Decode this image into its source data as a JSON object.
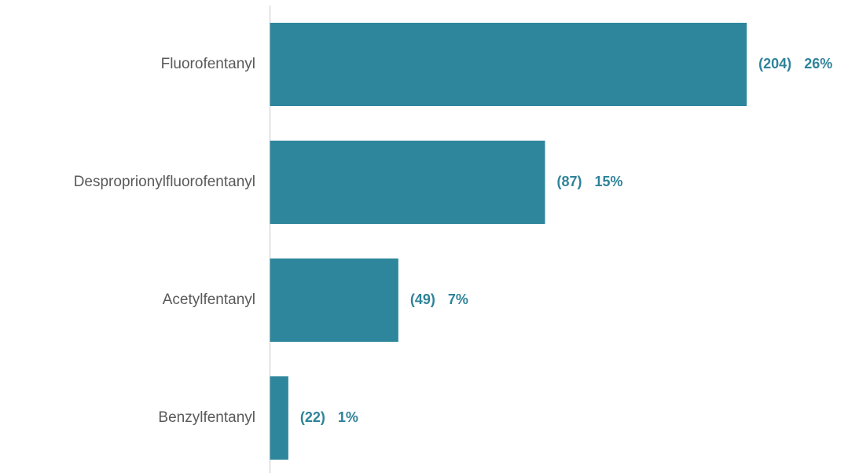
{
  "chart_data": {
    "type": "bar",
    "orientation": "horizontal",
    "categories": [
      "Fluorofentanyl",
      "Desproprionylfluorofentanyl",
      "Acetylfentanyl",
      "Benzylfentanyl"
    ],
    "values": [
      26,
      15,
      7,
      1
    ],
    "value_labels": [
      "26%",
      "15%",
      "7%",
      "1%"
    ],
    "count_labels": [
      "(204)",
      "(87)",
      "(49)",
      "(22)"
    ],
    "color": "#2e869c",
    "xlim": [
      0,
      30
    ]
  }
}
